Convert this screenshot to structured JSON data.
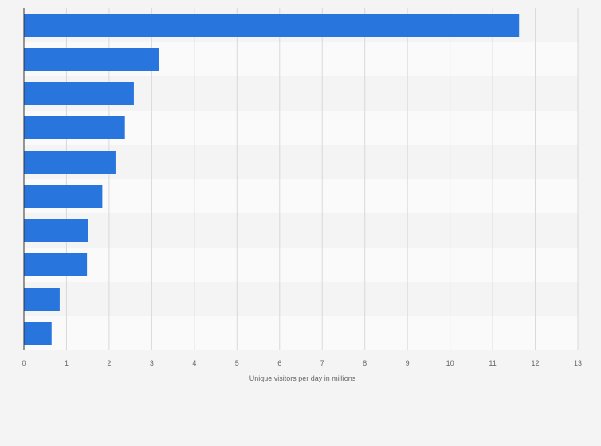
{
  "chart_data": {
    "type": "bar",
    "orientation": "horizontal",
    "categories": [
      "",
      "",
      "",
      "",
      "",
      "",
      "",
      "",
      "",
      ""
    ],
    "values": [
      11.62,
      3.17,
      2.58,
      2.37,
      2.15,
      1.84,
      1.5,
      1.48,
      0.84,
      0.65
    ],
    "xlabel": "Unique visitors per day in millions",
    "ylabel": "",
    "xlim": [
      0,
      13
    ],
    "xticks": [
      "0",
      "1",
      "2",
      "3",
      "4",
      "5",
      "6",
      "7",
      "8",
      "9",
      "10",
      "11",
      "12",
      "13"
    ],
    "grid": "vertical",
    "bar_color": "#2876dd",
    "band_colors": [
      "#f4f4f4",
      "#fafafa"
    ]
  }
}
